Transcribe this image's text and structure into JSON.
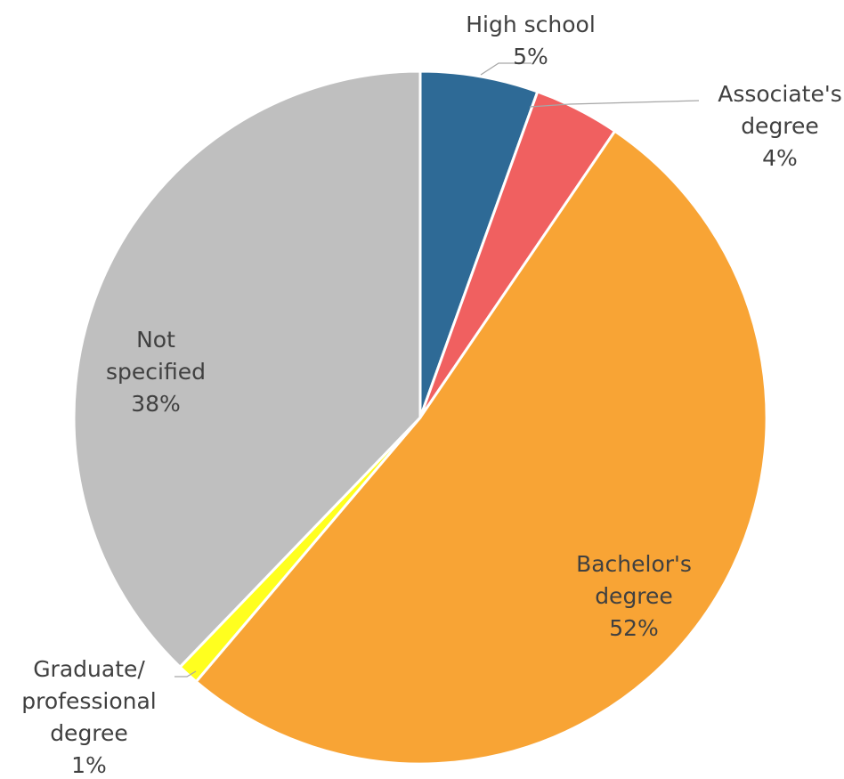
{
  "chart_data": {
    "type": "pie",
    "title": "",
    "start_angle_deg": 0,
    "direction": "clockwise",
    "slices": [
      {
        "label": "High school",
        "label_lines": [
          "High school",
          "5%"
        ],
        "value": 5.5,
        "display": "5%",
        "color": "#2e6a96"
      },
      {
        "label": "Associate's degree",
        "label_lines": [
          "Associate's",
          "degree",
          "4%"
        ],
        "value": 4,
        "display": "4%",
        "color": "#f06060"
      },
      {
        "label": "Bachelor's degree",
        "label_lines": [
          "Bachelor's",
          "degree",
          "52%"
        ],
        "value": 51.7,
        "display": "52%",
        "color": "#f8a435"
      },
      {
        "label": "Graduate/professional degree",
        "label_lines": [
          "Graduate/",
          "professional",
          "degree",
          "1%"
        ],
        "value": 1,
        "display": "1%",
        "color": "#ffff1f"
      },
      {
        "label": "Not specified",
        "label_lines": [
          "Not",
          "specified",
          "38%"
        ],
        "value": 37.8,
        "display": "38%",
        "color": "#bfbfbf"
      }
    ]
  }
}
